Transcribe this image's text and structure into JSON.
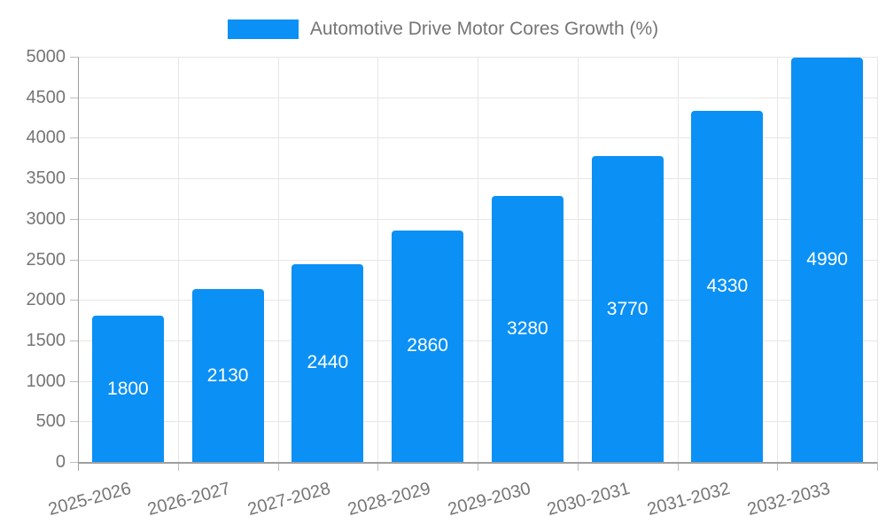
{
  "legend": {
    "label": "Automotive Drive Motor Cores Growth (%)"
  },
  "colors": {
    "bar": "#0b90f5",
    "grid": "#e6e6e6",
    "axis_line": "#9e9e9e",
    "tick": "#bdbdbd",
    "axis_text": "#757575",
    "value_label": "#ffffff",
    "background": "#ffffff"
  },
  "chart_data": {
    "type": "bar",
    "title": "Automotive Drive Motor Cores Growth (%)",
    "categories": [
      "2025-2026",
      "2026-2027",
      "2027-2028",
      "2028-2029",
      "2029-2030",
      "2030-2031",
      "2031-2032",
      "2032-2033"
    ],
    "values": [
      1800,
      2130,
      2440,
      2860,
      3280,
      3770,
      4330,
      4990
    ],
    "xlabel": "",
    "ylabel": "",
    "ylim": [
      0,
      5000
    ],
    "yticks": [
      0,
      500,
      1000,
      1500,
      2000,
      2500,
      3000,
      3500,
      4000,
      4500,
      5000
    ],
    "grid": true,
    "legend_position": "top",
    "x_label_rotation_deg": -15,
    "value_labels": "inside-center"
  }
}
